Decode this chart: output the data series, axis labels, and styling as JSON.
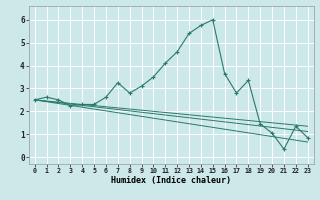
{
  "xlabel": "Humidex (Indice chaleur)",
  "bg_color": "#cce8e8",
  "grid_color": "#ffffff",
  "line_color": "#2a7a6a",
  "xlim": [
    -0.5,
    23.5
  ],
  "ylim": [
    -0.3,
    6.6
  ],
  "xtick_labels": [
    "0",
    "1",
    "2",
    "3",
    "4",
    "5",
    "6",
    "7",
    "8",
    "9",
    "10",
    "11",
    "12",
    "13",
    "14",
    "15",
    "16",
    "17",
    "18",
    "19",
    "20",
    "21",
    "22",
    "23"
  ],
  "ytick_values": [
    0,
    1,
    2,
    3,
    4,
    5,
    6
  ],
  "main_line_y": [
    2.5,
    2.62,
    2.5,
    2.25,
    2.3,
    2.3,
    2.62,
    3.25,
    2.8,
    3.1,
    3.5,
    4.1,
    4.6,
    5.4,
    5.75,
    6.0,
    3.65,
    2.8,
    3.35,
    1.45,
    1.05,
    0.35,
    1.35,
    0.85
  ],
  "flat_lines": [
    [
      2.5,
      2.45,
      2.4,
      2.35,
      2.3,
      2.25,
      2.2,
      2.15,
      2.1,
      2.05,
      2.0,
      1.95,
      1.9,
      1.85,
      1.8,
      1.75,
      1.7,
      1.65,
      1.6,
      1.55,
      1.5,
      1.45,
      1.4,
      1.35
    ],
    [
      2.5,
      2.44,
      2.38,
      2.32,
      2.26,
      2.2,
      2.14,
      2.08,
      2.02,
      1.96,
      1.9,
      1.84,
      1.78,
      1.72,
      1.66,
      1.6,
      1.54,
      1.48,
      1.42,
      1.36,
      1.3,
      1.24,
      1.18,
      1.12
    ],
    [
      2.5,
      2.42,
      2.34,
      2.26,
      2.18,
      2.1,
      2.02,
      1.94,
      1.86,
      1.78,
      1.7,
      1.62,
      1.54,
      1.46,
      1.38,
      1.3,
      1.22,
      1.14,
      1.06,
      0.98,
      0.9,
      0.82,
      0.74,
      0.66
    ]
  ]
}
